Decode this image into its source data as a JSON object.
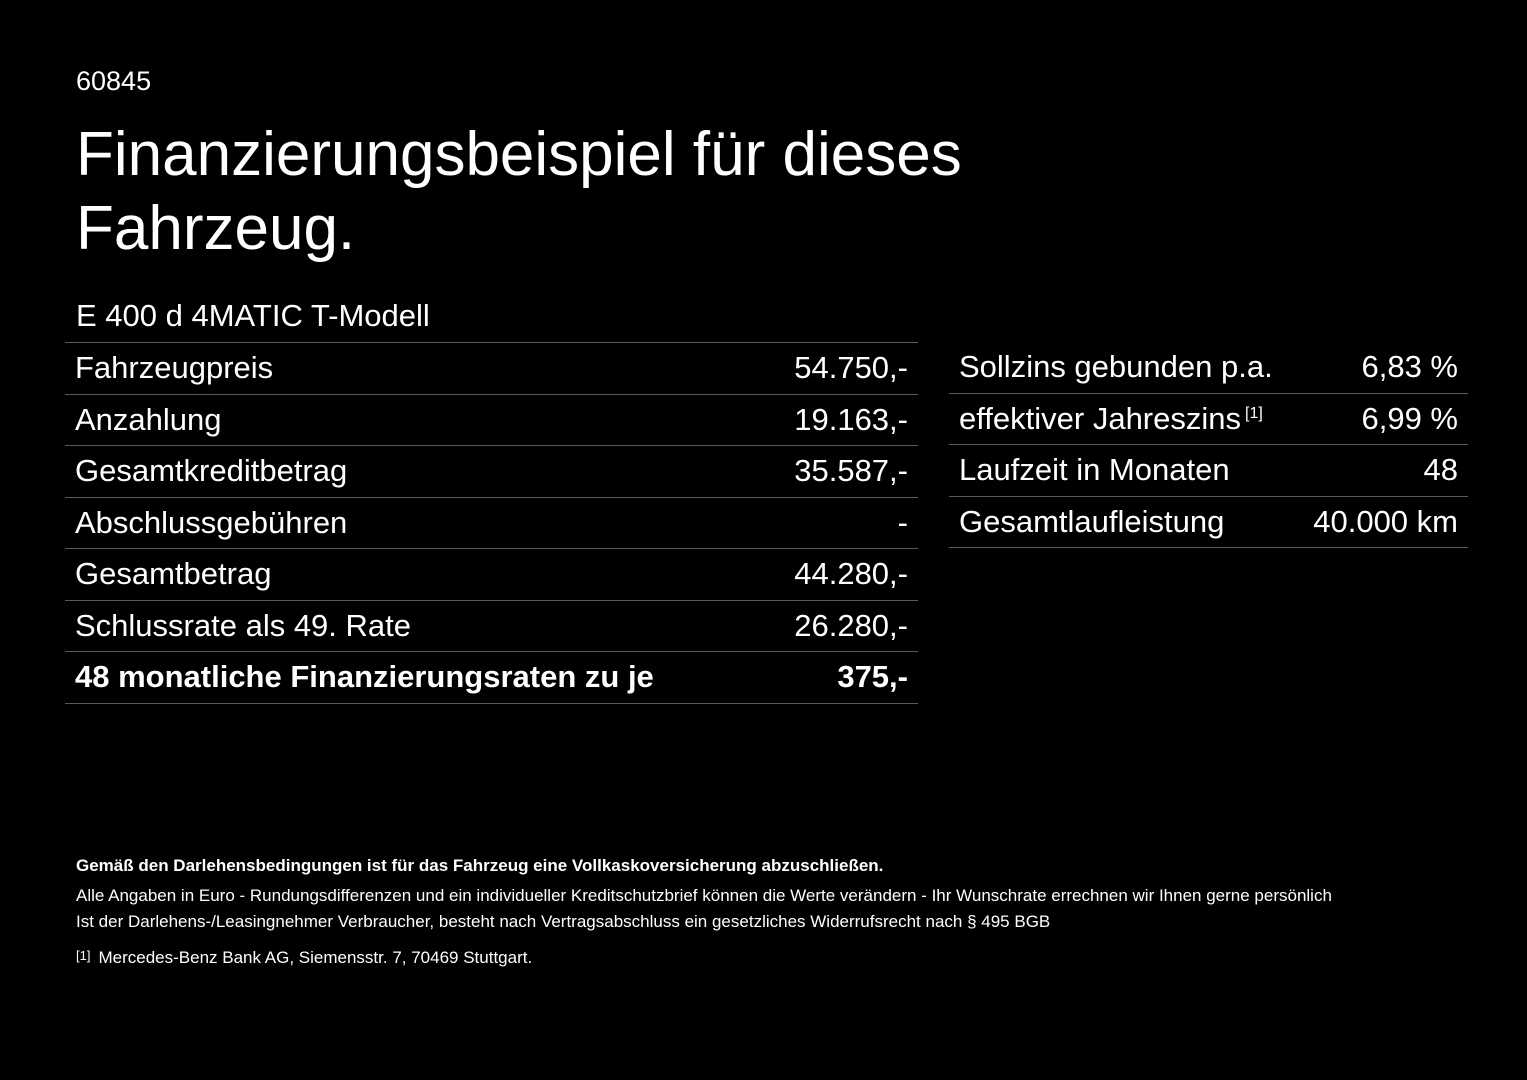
{
  "code": "60845",
  "title": "Finanzierungsbeispiel für dieses Fahrzeug.",
  "model": "E 400 d 4MATIC T-Modell",
  "left_rows": [
    {
      "label": "Fahrzeugpreis",
      "value": "54.750,-"
    },
    {
      "label": "Anzahlung",
      "value": "19.163,-"
    },
    {
      "label": "Gesamtkreditbetrag",
      "value": "35.587,-"
    },
    {
      "label": "Abschlussgebühren",
      "value": "-"
    },
    {
      "label": "Gesamtbetrag",
      "value": "44.280,-"
    },
    {
      "label": "Schlussrate als 49. Rate",
      "value": "26.280,-"
    },
    {
      "label": "48 monatliche Finanzierungsraten zu je",
      "value": "375,-"
    }
  ],
  "right_rows": [
    {
      "label": "Sollzins gebunden p.a.",
      "value": "6,83 %"
    },
    {
      "label": "effektiver Jahreszins",
      "sup": "[1]",
      "value": "6,99 %"
    },
    {
      "label": "Laufzeit in Monaten",
      "value": "48"
    },
    {
      "label": "Gesamtlaufleistung",
      "value": "40.000 km"
    }
  ],
  "notes": {
    "bold": "Gemäß den Darlehensbedingungen ist für das Fahrzeug eine Vollkaskoversicherung abzuschließen.",
    "line1": "Alle Angaben in Euro - Rundungsdifferenzen und ein individueller Kreditschutzbrief können die Werte verändern - Ihr Wunschrate errechnen wir Ihnen gerne persönlich",
    "line2": "Ist der Darlehens-/Leasingnehmer Verbraucher, besteht nach Vertragsabschluss ein gesetzliches Widerrufsrecht nach § 495 BGB",
    "footnote_marker": "[1]",
    "footnote": "Mercedes-Benz Bank AG, Siemensstr. 7, 70469 Stuttgart."
  }
}
